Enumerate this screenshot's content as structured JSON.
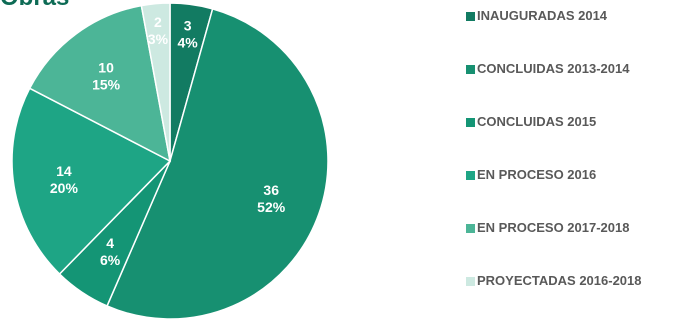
{
  "title": "Obras",
  "chart_data": {
    "type": "pie",
    "categories": [
      "INAUGURADAS 2014",
      "CONCLUIDAS 2013-2014",
      "CONCLUIDAS 2015",
      "EN PROCESO 2016",
      "EN PROCESO 2017-2018",
      "PROYECTADAS 2016-2018"
    ],
    "values": [
      3,
      36,
      4,
      14,
      10,
      2
    ],
    "percent_labels": [
      "4%",
      "52%",
      "6%",
      "20%",
      "15%",
      "3%"
    ],
    "colors": [
      "#127b62",
      "#179071",
      "#149575",
      "#1ea585",
      "#4cb597",
      "#cde9e1"
    ],
    "legend_position": "right"
  }
}
